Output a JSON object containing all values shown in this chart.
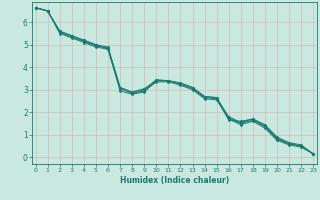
{
  "xlabel": "Humidex (Indice chaleur)",
  "bg_color": "#c8e8e0",
  "line_color": "#1a7a6e",
  "grid_color": "#b0d8d0",
  "xlim": [
    -0.3,
    23.3
  ],
  "ylim": [
    -0.3,
    6.9
  ],
  "xticks": [
    0,
    1,
    2,
    3,
    4,
    5,
    6,
    7,
    8,
    9,
    10,
    11,
    12,
    13,
    14,
    15,
    16,
    17,
    18,
    19,
    20,
    21,
    22,
    23
  ],
  "yticks": [
    0,
    1,
    2,
    3,
    4,
    5,
    6
  ],
  "series": [
    [
      6.65,
      6.5,
      5.6,
      5.4,
      5.2,
      5.0,
      4.8,
      2.95,
      2.8,
      2.9,
      3.4,
      3.4,
      3.3,
      3.1,
      2.7,
      2.65,
      1.65,
      1.6,
      1.7,
      1.45,
      0.9,
      0.65,
      0.55,
      0.15
    ],
    [
      6.65,
      6.5,
      5.6,
      5.4,
      5.2,
      5.0,
      4.9,
      3.1,
      2.85,
      3.0,
      3.45,
      3.4,
      3.3,
      3.1,
      2.7,
      2.65,
      1.8,
      1.55,
      1.7,
      1.4,
      0.85,
      0.6,
      0.5,
      0.15
    ],
    [
      6.65,
      6.5,
      5.55,
      5.35,
      5.15,
      4.95,
      4.85,
      3.1,
      2.9,
      3.05,
      3.4,
      3.4,
      3.25,
      3.05,
      2.65,
      2.6,
      1.75,
      1.5,
      1.65,
      1.35,
      0.8,
      0.6,
      0.5,
      0.15
    ],
    [
      6.65,
      6.5,
      5.5,
      5.3,
      5.1,
      4.9,
      4.8,
      3.05,
      2.85,
      2.95,
      3.35,
      3.35,
      3.2,
      3.0,
      2.6,
      2.55,
      1.7,
      1.45,
      1.6,
      1.3,
      0.75,
      0.55,
      0.45,
      0.15
    ]
  ]
}
